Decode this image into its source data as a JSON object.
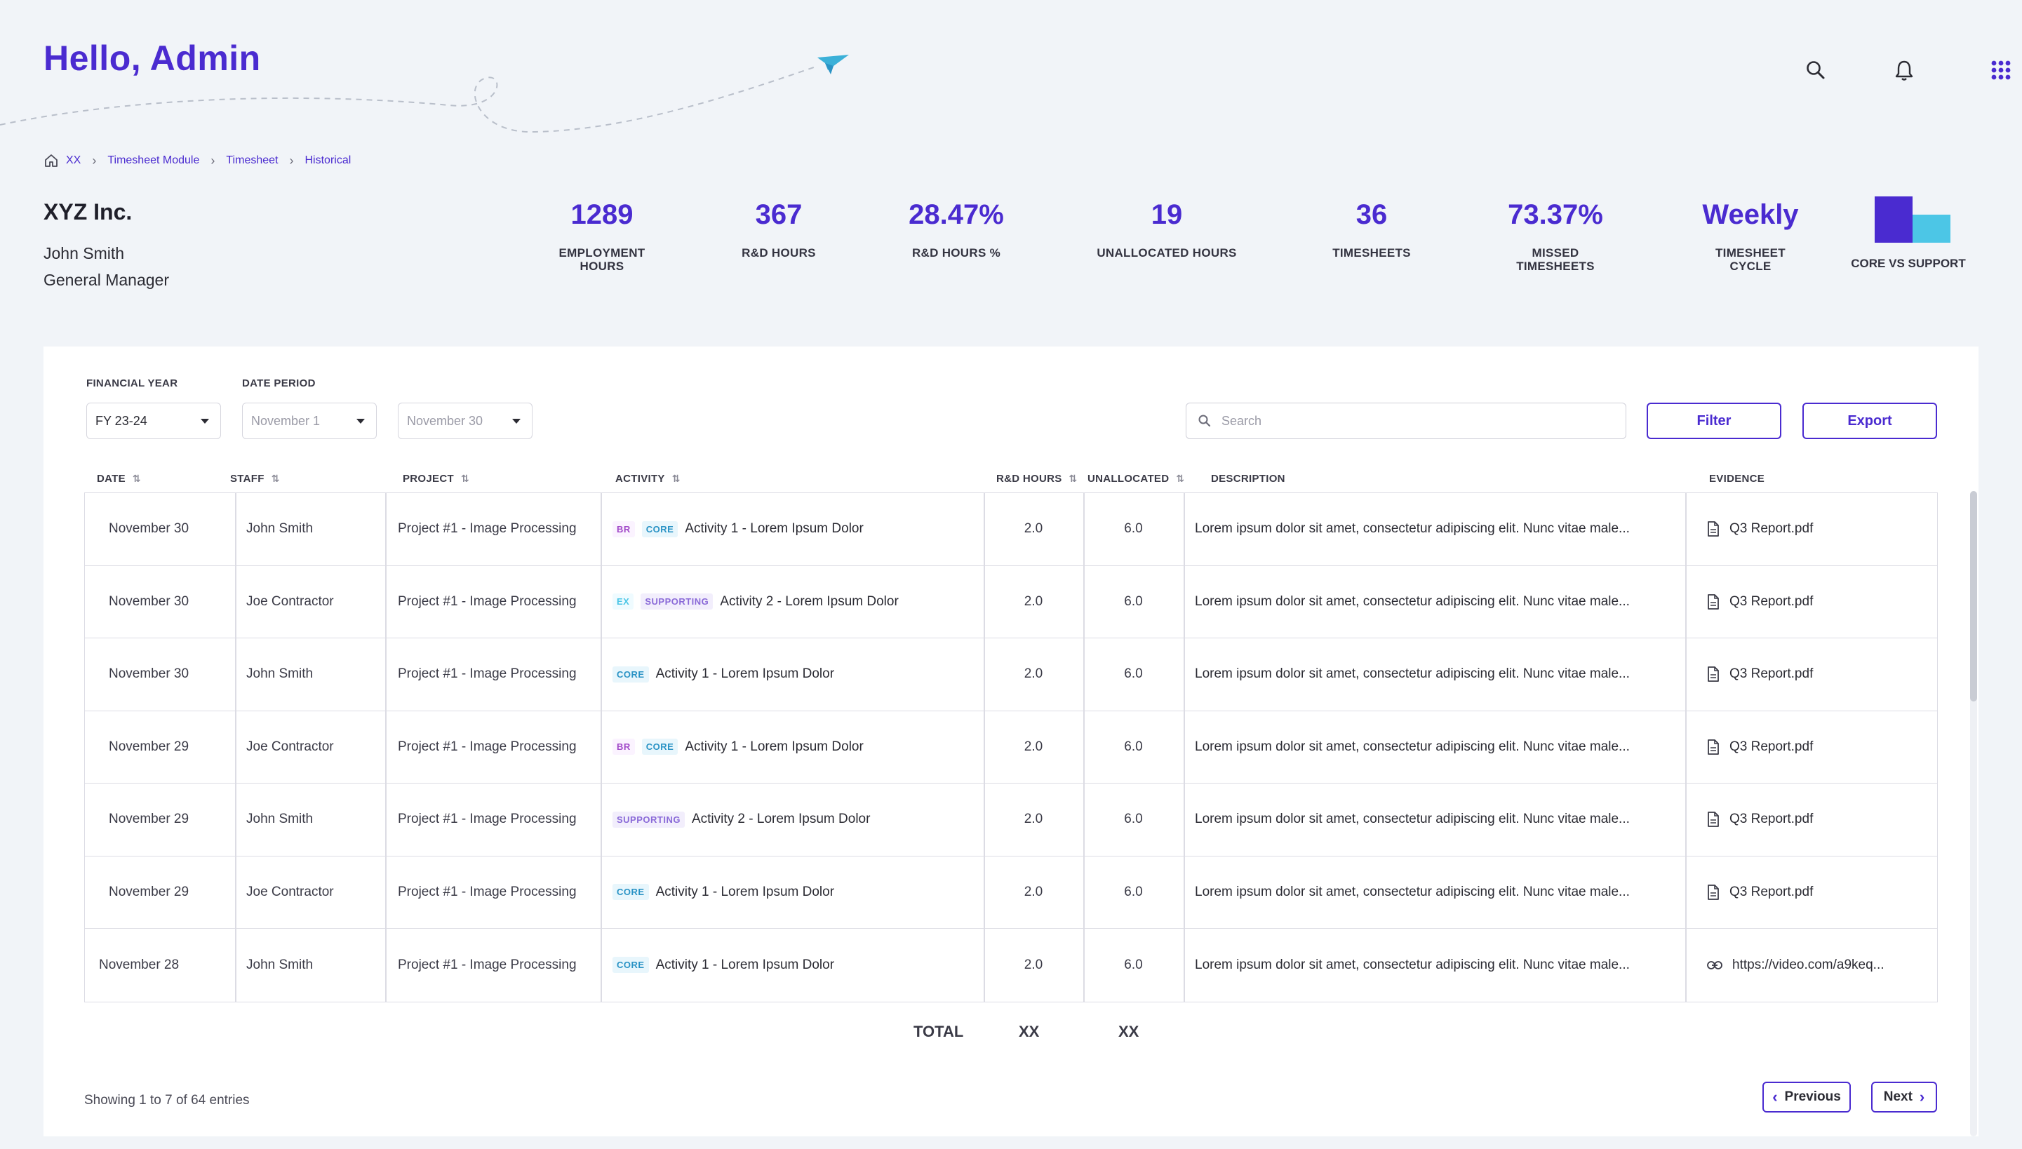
{
  "header": {
    "greeting": "Hello, Admin",
    "icons": [
      "search-icon",
      "bell-icon",
      "apps-grid-icon"
    ]
  },
  "breadcrumb": {
    "items": [
      "XX",
      "Timesheet Module",
      "Timesheet",
      "Historical"
    ]
  },
  "profile": {
    "company": "XYZ Inc.",
    "name": "John Smith",
    "role": "General Manager"
  },
  "stats": [
    {
      "value": "1289",
      "label1": "EMPLOYMENT",
      "label2": "HOURS"
    },
    {
      "value": "367",
      "label1": "R&D HOURS",
      "label2": ""
    },
    {
      "value": "28.47%",
      "label1": "R&D HOURS %",
      "label2": ""
    },
    {
      "value": "19",
      "label1": "UNALLOCATED HOURS",
      "label2": ""
    },
    {
      "value": "36",
      "label1": "TIMESHEETS",
      "label2": ""
    },
    {
      "value": "73.37%",
      "label1": "MISSED",
      "label2": "TIMESHEETS"
    },
    {
      "value": "Weekly",
      "label1": "TIMESHEET",
      "label2": "CYCLE"
    }
  ],
  "core_vs_support": {
    "label": "CORE VS SUPPORT",
    "colors": {
      "core": "#4a2bd0",
      "support": "#4cc6e6"
    }
  },
  "filters": {
    "financial_year_label": "FINANCIAL YEAR",
    "financial_year_value": "FY 23-24",
    "date_period_label": "DATE PERIOD",
    "date_from": "November 1",
    "date_to": "November 30",
    "search_placeholder": "Search",
    "filter_label": "Filter",
    "export_label": "Export"
  },
  "table": {
    "columns": [
      "DATE",
      "STAFF",
      "PROJECT",
      "ACTIVITY",
      "R&D HOURS",
      "UNALLOCATED",
      "DESCRIPTION",
      "EVIDENCE"
    ],
    "rows": [
      {
        "date": "November 30",
        "staff": "John Smith",
        "project": "Project #1 - Image Processing",
        "tags": [
          "BR",
          "CORE"
        ],
        "activity": "Activity 1 - Lorem Ipsum Dolor",
        "rd_hours": "2.0",
        "unallocated": "6.0",
        "description": "Lorem ipsum dolor sit amet, consectetur adipiscing elit. Nunc vitae male...",
        "evidence": "Q3 Report.pdf",
        "evidence_type": "file"
      },
      {
        "date": "November 30",
        "staff": "Joe Contractor",
        "project": "Project #1 - Image Processing",
        "tags": [
          "EX",
          "SUPPORTING"
        ],
        "activity": "Activity 2 - Lorem Ipsum Dolor",
        "rd_hours": "2.0",
        "unallocated": "6.0",
        "description": "Lorem ipsum dolor sit amet, consectetur adipiscing elit. Nunc vitae male...",
        "evidence": "Q3 Report.pdf",
        "evidence_type": "file"
      },
      {
        "date": "November 30",
        "staff": "John Smith",
        "project": "Project #1 - Image Processing",
        "tags": [
          "CORE"
        ],
        "activity": "Activity 1 - Lorem Ipsum Dolor",
        "rd_hours": "2.0",
        "unallocated": "6.0",
        "description": "Lorem ipsum dolor sit amet, consectetur adipiscing elit. Nunc vitae male...",
        "evidence": "Q3 Report.pdf",
        "evidence_type": "file"
      },
      {
        "date": "November 29",
        "staff": "Joe Contractor",
        "project": "Project #1 - Image Processing",
        "tags": [
          "BR",
          "CORE"
        ],
        "activity": "Activity 1 - Lorem Ipsum Dolor",
        "rd_hours": "2.0",
        "unallocated": "6.0",
        "description": "Lorem ipsum dolor sit amet, consectetur adipiscing elit. Nunc vitae male...",
        "evidence": "Q3 Report.pdf",
        "evidence_type": "file"
      },
      {
        "date": "November 29",
        "staff": "John Smith",
        "project": "Project #1 - Image Processing",
        "tags": [
          "SUPPORTING"
        ],
        "activity": "Activity 2 - Lorem Ipsum Dolor",
        "rd_hours": "2.0",
        "unallocated": "6.0",
        "description": "Lorem ipsum dolor sit amet, consectetur adipiscing elit. Nunc vitae male...",
        "evidence": "Q3 Report.pdf",
        "evidence_type": "file"
      },
      {
        "date": "November 29",
        "staff": "Joe Contractor",
        "project": "Project #1 - Image Processing",
        "tags": [
          "CORE"
        ],
        "activity": "Activity 1 - Lorem Ipsum Dolor",
        "rd_hours": "2.0",
        "unallocated": "6.0",
        "description": "Lorem ipsum dolor sit amet, consectetur adipiscing elit. Nunc vitae male...",
        "evidence": "Q3 Report.pdf",
        "evidence_type": "file"
      },
      {
        "date": "November 28",
        "staff": "John Smith",
        "project": "Project #1 - Image Processing",
        "tags": [
          "CORE"
        ],
        "activity": "Activity 1 - Lorem Ipsum Dolor",
        "rd_hours": "2.0",
        "unallocated": "6.0",
        "description": "Lorem ipsum dolor sit amet, consectetur adipiscing elit. Nunc vitae male...",
        "evidence": "https://video.com/a9keq...",
        "evidence_type": "link"
      }
    ],
    "total": {
      "label": "TOTAL",
      "rd_hours": "XX",
      "unallocated": "XX"
    }
  },
  "pagination": {
    "showing": "Showing 1 to 7 of 64 entries",
    "previous": "Previous",
    "next": "Next"
  }
}
